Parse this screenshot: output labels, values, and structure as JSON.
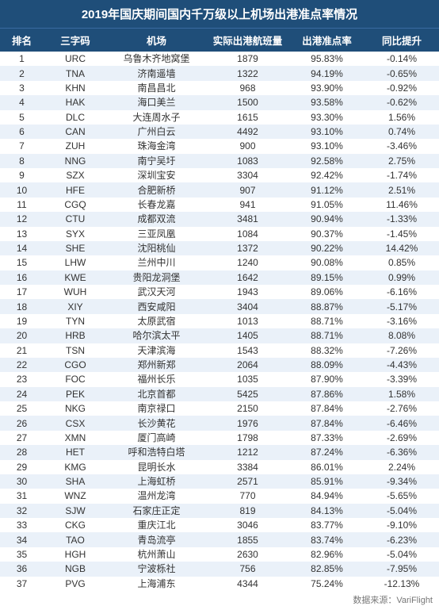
{
  "title": "2019年国庆期间国内千万级以上机场出港准点率情况",
  "columns": {
    "rank": "排名",
    "code": "三字码",
    "airport": "机场",
    "departures": "实际出港航班量",
    "rate": "出港准点率",
    "yoy": "同比提升"
  },
  "rows": [
    {
      "rank": "1",
      "code": "URC",
      "airport": "乌鲁木齐地窝堡",
      "departures": "1879",
      "rate": "95.83%",
      "yoy": "-0.14%"
    },
    {
      "rank": "2",
      "code": "TNA",
      "airport": "济南遥墙",
      "departures": "1322",
      "rate": "94.19%",
      "yoy": "-0.65%"
    },
    {
      "rank": "3",
      "code": "KHN",
      "airport": "南昌昌北",
      "departures": "968",
      "rate": "93.90%",
      "yoy": "-0.92%"
    },
    {
      "rank": "4",
      "code": "HAK",
      "airport": "海口美兰",
      "departures": "1500",
      "rate": "93.58%",
      "yoy": "-0.62%"
    },
    {
      "rank": "5",
      "code": "DLC",
      "airport": "大连周水子",
      "departures": "1615",
      "rate": "93.30%",
      "yoy": "1.56%"
    },
    {
      "rank": "6",
      "code": "CAN",
      "airport": "广州白云",
      "departures": "4492",
      "rate": "93.10%",
      "yoy": "0.74%"
    },
    {
      "rank": "7",
      "code": "ZUH",
      "airport": "珠海金湾",
      "departures": "900",
      "rate": "93.10%",
      "yoy": "-3.46%"
    },
    {
      "rank": "8",
      "code": "NNG",
      "airport": "南宁吴圩",
      "departures": "1083",
      "rate": "92.58%",
      "yoy": "2.75%"
    },
    {
      "rank": "9",
      "code": "SZX",
      "airport": "深圳宝安",
      "departures": "3304",
      "rate": "92.42%",
      "yoy": "-1.74%"
    },
    {
      "rank": "10",
      "code": "HFE",
      "airport": "合肥新桥",
      "departures": "907",
      "rate": "91.12%",
      "yoy": "2.51%"
    },
    {
      "rank": "11",
      "code": "CGQ",
      "airport": "长春龙嘉",
      "departures": "941",
      "rate": "91.05%",
      "yoy": "11.46%"
    },
    {
      "rank": "12",
      "code": "CTU",
      "airport": "成都双流",
      "departures": "3481",
      "rate": "90.94%",
      "yoy": "-1.33%"
    },
    {
      "rank": "13",
      "code": "SYX",
      "airport": "三亚凤凰",
      "departures": "1084",
      "rate": "90.37%",
      "yoy": "-1.45%"
    },
    {
      "rank": "14",
      "code": "SHE",
      "airport": "沈阳桃仙",
      "departures": "1372",
      "rate": "90.22%",
      "yoy": "14.42%"
    },
    {
      "rank": "15",
      "code": "LHW",
      "airport": "兰州中川",
      "departures": "1240",
      "rate": "90.08%",
      "yoy": "0.85%"
    },
    {
      "rank": "16",
      "code": "KWE",
      "airport": "贵阳龙洞堡",
      "departures": "1642",
      "rate": "89.15%",
      "yoy": "0.99%"
    },
    {
      "rank": "17",
      "code": "WUH",
      "airport": "武汉天河",
      "departures": "1943",
      "rate": "89.06%",
      "yoy": "-6.16%"
    },
    {
      "rank": "18",
      "code": "XIY",
      "airport": "西安咸阳",
      "departures": "3404",
      "rate": "88.87%",
      "yoy": "-5.17%"
    },
    {
      "rank": "19",
      "code": "TYN",
      "airport": "太原武宿",
      "departures": "1013",
      "rate": "88.71%",
      "yoy": "-3.16%"
    },
    {
      "rank": "20",
      "code": "HRB",
      "airport": "哈尔滨太平",
      "departures": "1405",
      "rate": "88.71%",
      "yoy": "8.08%"
    },
    {
      "rank": "21",
      "code": "TSN",
      "airport": "天津滨海",
      "departures": "1543",
      "rate": "88.32%",
      "yoy": "-7.26%"
    },
    {
      "rank": "22",
      "code": "CGO",
      "airport": "郑州新郑",
      "departures": "2064",
      "rate": "88.09%",
      "yoy": "-4.43%"
    },
    {
      "rank": "23",
      "code": "FOC",
      "airport": "福州长乐",
      "departures": "1035",
      "rate": "87.90%",
      "yoy": "-3.39%"
    },
    {
      "rank": "24",
      "code": "PEK",
      "airport": "北京首都",
      "departures": "5425",
      "rate": "87.86%",
      "yoy": "1.58%"
    },
    {
      "rank": "25",
      "code": "NKG",
      "airport": "南京禄口",
      "departures": "2150",
      "rate": "87.84%",
      "yoy": "-2.76%"
    },
    {
      "rank": "26",
      "code": "CSX",
      "airport": "长沙黄花",
      "departures": "1976",
      "rate": "87.84%",
      "yoy": "-6.46%"
    },
    {
      "rank": "27",
      "code": "XMN",
      "airport": "厦门高崎",
      "departures": "1798",
      "rate": "87.33%",
      "yoy": "-2.69%"
    },
    {
      "rank": "28",
      "code": "HET",
      "airport": "呼和浩特白塔",
      "departures": "1212",
      "rate": "87.24%",
      "yoy": "-6.36%"
    },
    {
      "rank": "29",
      "code": "KMG",
      "airport": "昆明长水",
      "departures": "3384",
      "rate": "86.01%",
      "yoy": "2.24%"
    },
    {
      "rank": "30",
      "code": "SHA",
      "airport": "上海虹桥",
      "departures": "2571",
      "rate": "85.91%",
      "yoy": "-9.34%"
    },
    {
      "rank": "31",
      "code": "WNZ",
      "airport": "温州龙湾",
      "departures": "770",
      "rate": "84.94%",
      "yoy": "-5.65%"
    },
    {
      "rank": "32",
      "code": "SJW",
      "airport": "石家庄正定",
      "departures": "819",
      "rate": "84.13%",
      "yoy": "-5.04%"
    },
    {
      "rank": "33",
      "code": "CKG",
      "airport": "重庆江北",
      "departures": "3046",
      "rate": "83.77%",
      "yoy": "-9.10%"
    },
    {
      "rank": "34",
      "code": "TAO",
      "airport": "青岛流亭",
      "departures": "1855",
      "rate": "83.74%",
      "yoy": "-6.23%"
    },
    {
      "rank": "35",
      "code": "HGH",
      "airport": "杭州萧山",
      "departures": "2630",
      "rate": "82.96%",
      "yoy": "-5.04%"
    },
    {
      "rank": "36",
      "code": "NGB",
      "airport": "宁波栎社",
      "departures": "756",
      "rate": "82.85%",
      "yoy": "-7.95%"
    },
    {
      "rank": "37",
      "code": "PVG",
      "airport": "上海浦东",
      "departures": "4344",
      "rate": "75.24%",
      "yoy": "-12.13%"
    }
  ],
  "footer": "数据来源：VariFlight",
  "style": {
    "header_bg": "#1f4e79",
    "header_fg": "#ffffff",
    "row_odd_bg": "#ffffff",
    "row_even_bg": "#eaf1f9",
    "text_color": "#333333",
    "footer_color": "#777777",
    "title_fontsize": 15,
    "header_fontsize": 12.5,
    "row_fontsize": 12
  }
}
